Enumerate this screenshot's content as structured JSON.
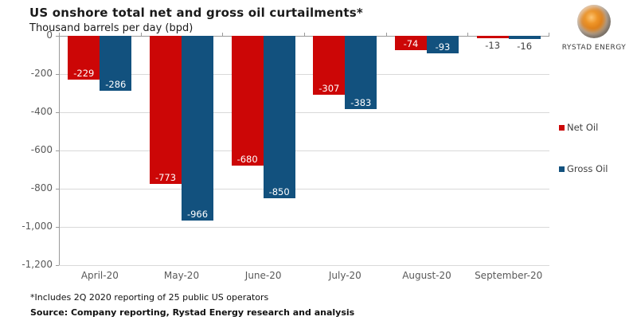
{
  "header": {
    "title": "US onshore total net and gross oil curtailments*",
    "subtitle": "Thousand barrels per day (bpd)"
  },
  "logo": {
    "text": "RYSTAD ENERGY",
    "globe_orange": "#e08a20",
    "globe_gray": "#9b9896"
  },
  "chart_data": {
    "type": "bar",
    "title": "US onshore total net and gross oil curtailments*",
    "ylabel": "Thousand barrels per day (bpd)",
    "categories": [
      "April-20",
      "May-20",
      "June-20",
      "July-20",
      "August-20",
      "September-20"
    ],
    "series": [
      {
        "name": "Net Oil",
        "color": "#cc0606",
        "values": [
          -229,
          -773,
          -680,
          -307,
          -74,
          -13
        ]
      },
      {
        "name": "Gross Oil",
        "color": "#12517e",
        "values": [
          -286,
          -966,
          -850,
          -383,
          -93,
          -16
        ]
      }
    ],
    "ylim": [
      -1200,
      0
    ],
    "y_ticks": [
      "0",
      "-200",
      "-400",
      "-600",
      "-800",
      "-1,000",
      "-1,200"
    ],
    "grid": true,
    "legend_position": "right"
  },
  "footnotes": {
    "note": "*Includes 2Q 2020 reporting of 25 public US operators",
    "source": "Source: Company reporting, Rystad Energy research and analysis"
  }
}
